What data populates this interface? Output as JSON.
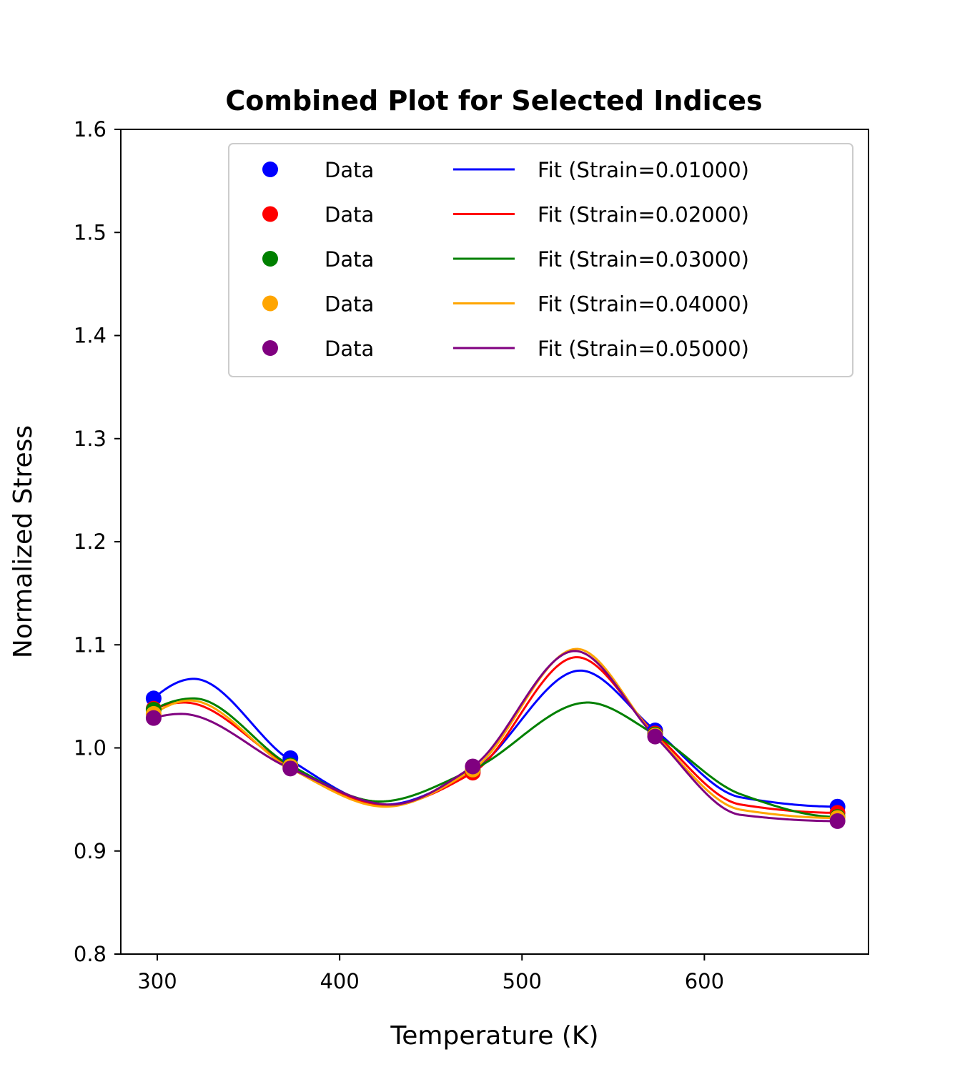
{
  "chart_data": {
    "type": "line",
    "title": "Combined Plot for Selected Indices",
    "xlabel": "Temperature (K)",
    "ylabel": "Normalized Stress",
    "xlim": [
      280,
      690
    ],
    "ylim": [
      0.8,
      1.6
    ],
    "xticks": [
      300,
      400,
      500,
      600
    ],
    "xtick_labels": [
      "300",
      "400",
      "500",
      "600"
    ],
    "yticks": [
      0.8,
      0.9,
      1.0,
      1.1,
      1.2,
      1.3,
      1.4,
      1.5,
      1.6
    ],
    "ytick_labels": [
      "0.8",
      "0.9",
      "1.0",
      "1.1",
      "1.2",
      "1.3",
      "1.4",
      "1.5",
      "1.6"
    ],
    "grid": false,
    "legend_position": "top-right",
    "legend_columns": 2,
    "x": [
      298,
      373,
      473,
      573,
      673
    ],
    "series": [
      {
        "data_name": "Data",
        "fit_name": "Fit (Strain=0.01000)",
        "color": "#0000ff",
        "data_y": [
          1.048,
          0.99,
          0.978,
          1.017,
          0.943
        ],
        "fit_x": [
          298,
          320,
          373,
          425,
          473,
          532,
          573,
          620,
          673
        ],
        "fit_y": [
          1.048,
          1.067,
          0.988,
          0.945,
          0.978,
          1.075,
          1.017,
          0.952,
          0.943
        ]
      },
      {
        "data_name": "Data",
        "fit_name": "Fit (Strain=0.02000)",
        "color": "#ff0000",
        "data_y": [
          1.038,
          0.982,
          0.976,
          1.014,
          0.937
        ],
        "fit_x": [
          298,
          315,
          373,
          425,
          473,
          530,
          573,
          620,
          673
        ],
        "fit_y": [
          1.038,
          1.044,
          0.982,
          0.944,
          0.976,
          1.088,
          1.014,
          0.945,
          0.937
        ]
      },
      {
        "data_name": "Data",
        "fit_name": "Fit (Strain=0.03000)",
        "color": "#008000",
        "data_y": [
          1.037,
          0.983,
          0.979,
          1.013,
          0.933
        ],
        "fit_x": [
          298,
          320,
          373,
          422,
          473,
          536,
          573,
          620,
          673
        ],
        "fit_y": [
          1.037,
          1.048,
          0.983,
          0.948,
          0.979,
          1.044,
          1.013,
          0.955,
          0.933
        ]
      },
      {
        "data_name": "Data",
        "fit_name": "Fit (Strain=0.04000)",
        "color": "#ffa500",
        "data_y": [
          1.033,
          0.982,
          0.979,
          1.012,
          0.932
        ],
        "fit_x": [
          298,
          318,
          373,
          425,
          473,
          530,
          573,
          620,
          673
        ],
        "fit_y": [
          1.033,
          1.046,
          0.98,
          0.943,
          0.979,
          1.096,
          1.012,
          0.94,
          0.932
        ]
      },
      {
        "data_name": "Data",
        "fit_name": "Fit (Strain=0.05000)",
        "color": "#800080",
        "data_y": [
          1.029,
          0.98,
          0.982,
          1.011,
          0.929
        ],
        "fit_x": [
          298,
          313,
          373,
          428,
          473,
          529,
          573,
          620,
          673
        ],
        "fit_y": [
          1.029,
          1.033,
          0.98,
          0.945,
          0.982,
          1.094,
          1.011,
          0.935,
          0.929
        ]
      }
    ]
  }
}
